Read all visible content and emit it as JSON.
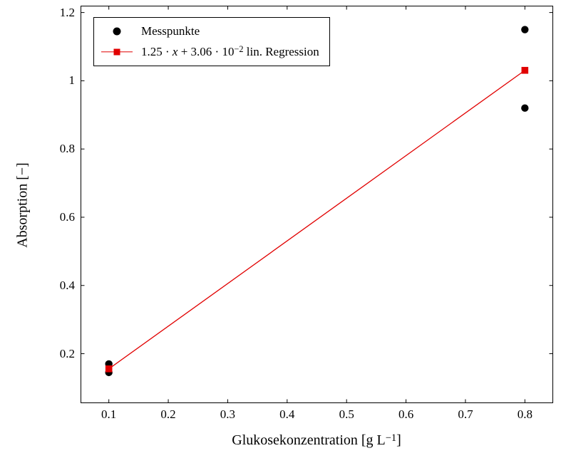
{
  "chart_data": {
    "type": "scatter",
    "title": "",
    "xlabel": "Glukosekonzentration [g L⁻¹]",
    "ylabel": "Absorption [−]",
    "xlim": [
      0.053,
      0.847
    ],
    "ylim": [
      0.056,
      1.219
    ],
    "xticks": [
      0.1,
      0.2,
      0.3,
      0.4,
      0.5,
      0.6,
      0.7,
      0.8
    ],
    "xtick_labels": [
      "0.1",
      "0.2",
      "0.3",
      "0.4",
      "0.5",
      "0.6",
      "0.7",
      "0.8"
    ],
    "yticks": [
      0.2,
      0.4,
      0.6,
      0.8,
      1.0,
      1.2
    ],
    "ytick_labels": [
      "0.2",
      "0.4",
      "0.6",
      "0.8",
      "1",
      "1.2"
    ],
    "grid": false,
    "legend_position": "top-left",
    "series": [
      {
        "name": "Messpunkte",
        "type": "scatter",
        "marker": "circle",
        "color": "#000000",
        "points": [
          [
            0.1,
            0.145
          ],
          [
            0.1,
            0.17
          ],
          [
            0.8,
            0.92
          ],
          [
            0.8,
            1.15
          ]
        ]
      },
      {
        "name": "1.25 · x + 3.06 · 10⁻² lin. Regression",
        "type": "line",
        "marker": "square",
        "color": "#e10000",
        "equation": "y = 1.25·x + 0.0306",
        "slope": 1.25,
        "intercept": 0.0306,
        "points": [
          [
            0.1,
            0.1556
          ],
          [
            0.8,
            1.0306
          ]
        ]
      }
    ]
  },
  "axes": {
    "xlabel_prefix": "Glukosekonzentration [g L",
    "xlabel_sup": "−1",
    "xlabel_suffix": "]",
    "ylabel": "Absorption [−]"
  },
  "legend": {
    "items": [
      {
        "marker": "dot",
        "label": "Messpunkte"
      },
      {
        "marker": "line-square",
        "label": "1.25 · x + 3.06 · 10⁻² lin. Regression",
        "parts": {
          "prefix": "1.25 · ",
          "var": "x",
          "mid": " + 3.06 · 10",
          "sup": "−2",
          "suffix": " lin. Regression"
        }
      }
    ]
  }
}
